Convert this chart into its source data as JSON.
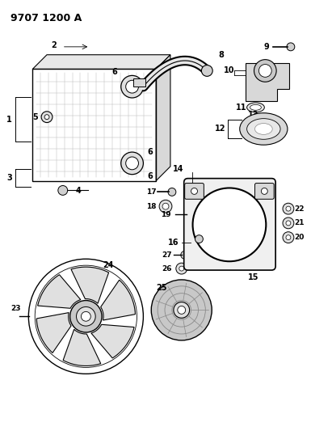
{
  "title": "9707 1200 A",
  "bg_color": "#ffffff",
  "line_color": "#000000",
  "title_fontsize": 9,
  "label_fontsize": 6.5,
  "fig_w": 4.11,
  "fig_h": 5.33,
  "dpi": 100
}
